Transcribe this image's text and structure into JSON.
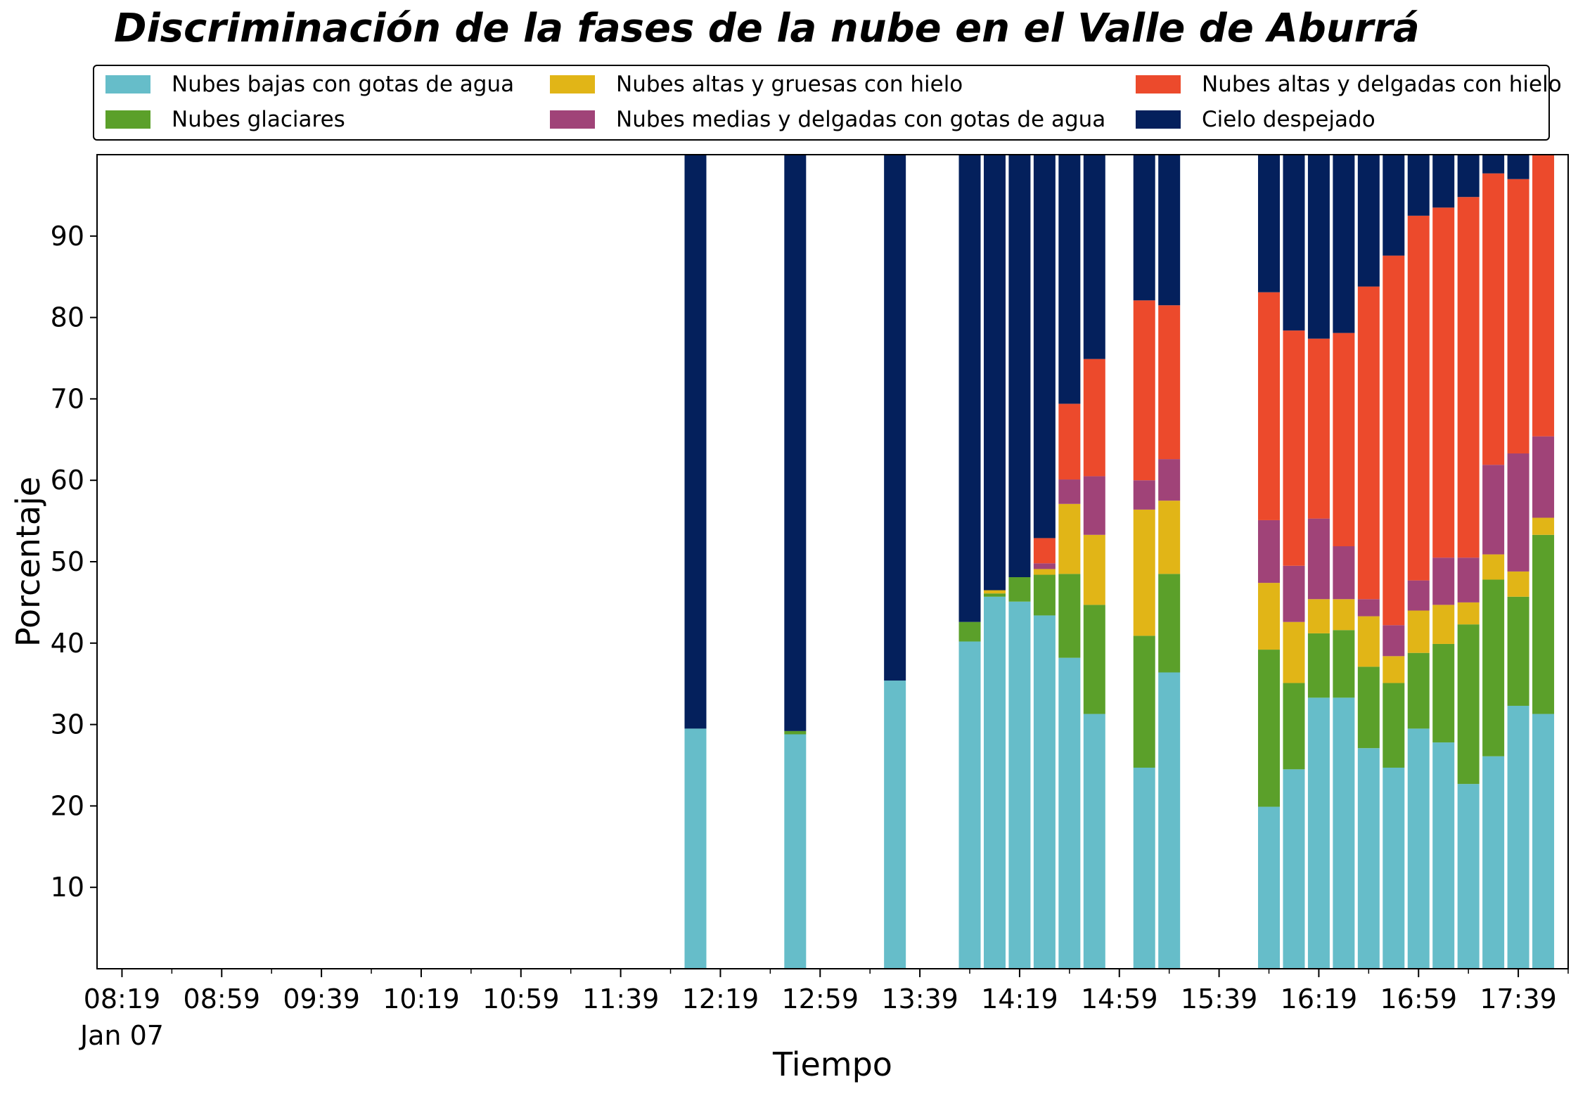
{
  "title": "Discriminación de la fases de la nube en el Valle de Aburrá",
  "chart_data": {
    "type": "bar",
    "stacked": true,
    "xlabel": "Tiempo",
    "ylabel": "Porcentaje",
    "ylim": [
      0,
      100
    ],
    "yticks": [
      10,
      20,
      30,
      40,
      50,
      60,
      70,
      80,
      90
    ],
    "xlim_minutes_since_0819": [
      -10,
      580
    ],
    "x_tick_labels": [
      "08:19",
      "08:59",
      "09:39",
      "10:19",
      "10:59",
      "11:39",
      "12:19",
      "12:59",
      "13:39",
      "14:19",
      "14:59",
      "15:39",
      "16:19",
      "16:59",
      "17:39"
    ],
    "x_date_label": "Jan 07",
    "legend_position": "top",
    "series": [
      {
        "name": "Nubes bajas con gotas de agua",
        "color": "#66bdc9"
      },
      {
        "name": "Nubes glaciares",
        "color": "#5ba02a"
      },
      {
        "name": "Nubes altas y gruesas con hielo",
        "color": "#e1b517"
      },
      {
        "name": "Nubes medias y delgadas con gotas de agua",
        "color": "#a04378"
      },
      {
        "name": "Nubes altas y delgadas con hielo",
        "color": "#ec4a2c"
      },
      {
        "name": "Cielo despejado",
        "color": "#04205c"
      }
    ],
    "bars": [
      {
        "time": "12:09",
        "values": [
          29.5,
          0,
          0,
          0,
          0,
          70.5
        ]
      },
      {
        "time": "12:49",
        "values": [
          28.8,
          0.4,
          0,
          0,
          0,
          70.8
        ]
      },
      {
        "time": "13:29",
        "values": [
          35.4,
          0,
          0,
          0,
          0,
          64.6
        ]
      },
      {
        "time": "13:59",
        "values": [
          40.2,
          2.4,
          0,
          0,
          0,
          57.4
        ]
      },
      {
        "time": "14:09",
        "values": [
          45.7,
          0.4,
          0.4,
          0,
          0,
          53.5
        ]
      },
      {
        "time": "14:19",
        "values": [
          45.1,
          3.0,
          0,
          0,
          0,
          51.9
        ]
      },
      {
        "time": "14:29",
        "values": [
          43.4,
          5.0,
          0.7,
          0.7,
          3.1,
          47.1
        ]
      },
      {
        "time": "14:39",
        "values": [
          38.2,
          10.3,
          8.6,
          3.0,
          9.3,
          30.6
        ]
      },
      {
        "time": "14:49",
        "values": [
          31.3,
          13.4,
          8.6,
          7.2,
          14.4,
          25.1
        ]
      },
      {
        "time": "15:09",
        "values": [
          24.7,
          16.2,
          15.5,
          3.6,
          22.1,
          17.9
        ]
      },
      {
        "time": "15:19",
        "values": [
          36.4,
          12.1,
          9.0,
          5.1,
          18.9,
          18.5
        ]
      },
      {
        "time": "15:59",
        "values": [
          19.9,
          19.3,
          8.2,
          7.7,
          28.0,
          16.9
        ]
      },
      {
        "time": "16:09",
        "values": [
          24.5,
          10.6,
          7.5,
          6.9,
          28.9,
          21.6
        ]
      },
      {
        "time": "16:19",
        "values": [
          33.3,
          7.9,
          4.2,
          9.9,
          22.1,
          22.6
        ]
      },
      {
        "time": "16:29",
        "values": [
          33.3,
          8.3,
          3.8,
          6.5,
          26.2,
          21.9
        ]
      },
      {
        "time": "16:39",
        "values": [
          27.1,
          10.0,
          6.2,
          2.1,
          38.4,
          16.2
        ]
      },
      {
        "time": "16:49",
        "values": [
          24.7,
          10.4,
          3.3,
          3.8,
          45.4,
          12.4
        ]
      },
      {
        "time": "16:59",
        "values": [
          29.5,
          9.3,
          5.2,
          3.7,
          44.8,
          7.5
        ]
      },
      {
        "time": "17:09",
        "values": [
          27.8,
          12.1,
          4.8,
          5.8,
          43.0,
          6.5
        ]
      },
      {
        "time": "17:19",
        "values": [
          22.7,
          19.6,
          2.7,
          5.5,
          44.3,
          5.2
        ]
      },
      {
        "time": "17:29",
        "values": [
          26.1,
          21.7,
          3.1,
          11.0,
          35.8,
          2.3
        ]
      },
      {
        "time": "17:39",
        "values": [
          32.3,
          13.4,
          3.1,
          14.5,
          33.7,
          3.0
        ]
      },
      {
        "time": "17:49",
        "values": [
          31.3,
          22.0,
          2.1,
          10.0,
          34.6,
          0
        ]
      }
    ]
  }
}
